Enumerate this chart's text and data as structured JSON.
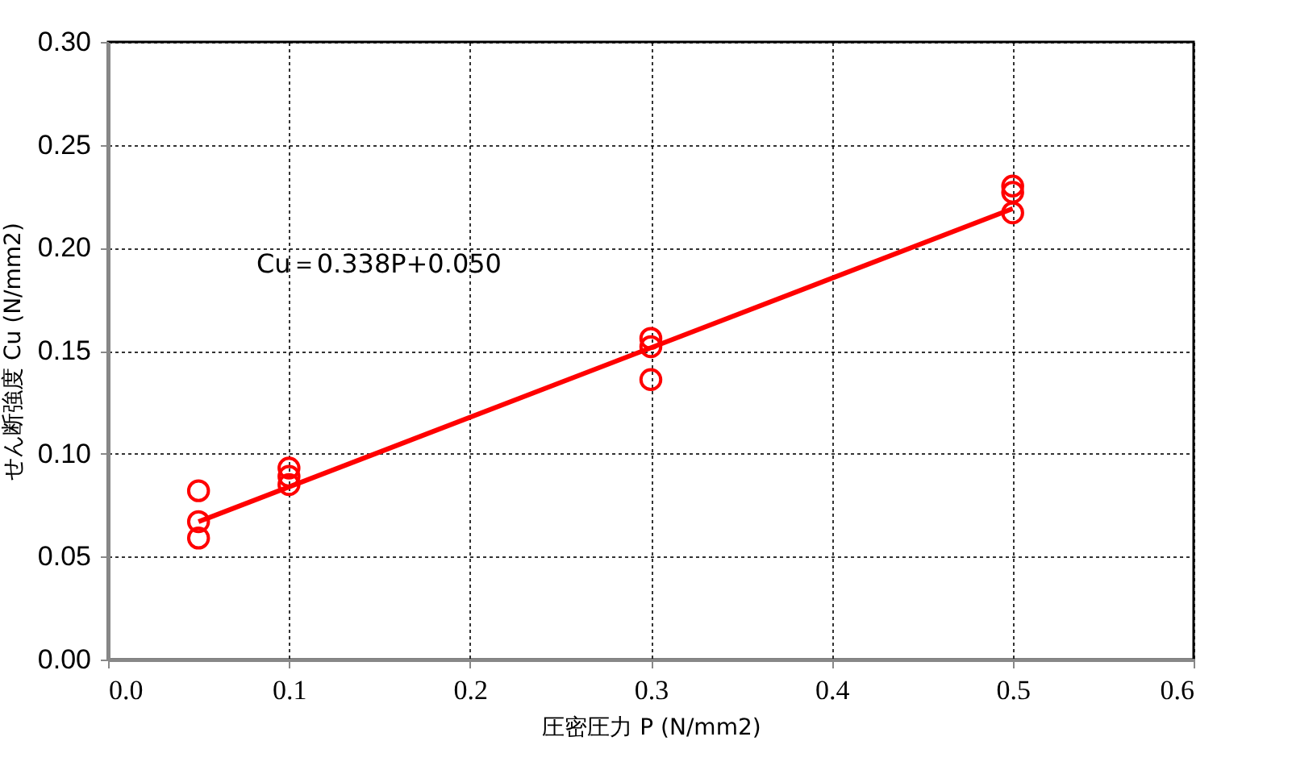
{
  "chart_data": {
    "type": "scatter",
    "xlabel": "圧密圧力 P (N/mm2)",
    "ylabel": "せん断強度 Cu (N/mm2)",
    "annotations": [
      "Cu＝0.338P+0.050"
    ],
    "xlim": [
      0,
      0.6
    ],
    "xticks": [
      {
        "value": 0,
        "label": "0.0"
      },
      {
        "value": 0.1,
        "label": "0.1"
      },
      {
        "value": 0.2,
        "label": "0.2"
      },
      {
        "value": 0.3,
        "label": "0.3"
      },
      {
        "value": 0.4,
        "label": "0.4"
      },
      {
        "value": 0.5,
        "label": "0.5"
      },
      {
        "value": 0.6,
        "label": "0.6"
      }
    ],
    "ylim": [
      0,
      0.3
    ],
    "yticks": [
      {
        "value": 0,
        "label": "0.00"
      },
      0.05,
      {
        "value": 0.1,
        "label": "0.10"
      },
      0.15,
      {
        "value": 0.2,
        "label": "0.20"
      },
      0.25,
      {
        "value": 0.3,
        "label": "0.30"
      }
    ],
    "grid": true,
    "series": [
      {
        "color": "#ff0000",
        "marker": "circle",
        "x": [
          0.05,
          0.05,
          0.05,
          0.1,
          0.1,
          0.1,
          0.3,
          0.3,
          0.3,
          0.5,
          0.5,
          0.5
        ],
        "values": [
          0.082,
          0.067,
          0.059,
          0.093,
          0.089,
          0.085,
          0.156,
          0.152,
          0.136,
          0.23,
          0.227,
          0.217
        ]
      },
      {
        "type": "line",
        "color": "#ff0000",
        "line_style": "solid",
        "x": [
          0.05,
          0.5
        ],
        "values": [
          0.067,
          0.219
        ]
      }
    ]
  }
}
